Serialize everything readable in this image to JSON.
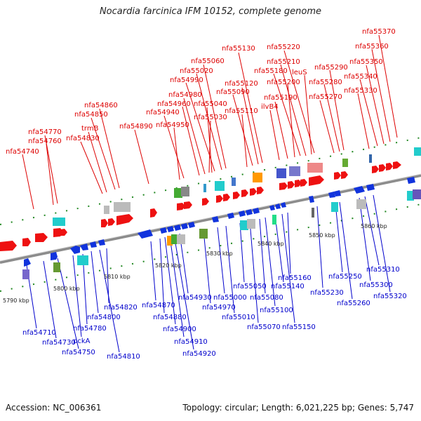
{
  "title": "Nocardia farcinica IFM 10152, complete genome",
  "footer": {
    "accession": "Accession: NC_006361",
    "summary": "Topology: circular; Length: 6,021,225 bp; Genes: 5,747"
  },
  "colors": {
    "forward_label": "#dd0000",
    "reverse_label": "#0000cc",
    "forward_gene": "#ee1111",
    "reverse_gene": "#1133dd",
    "axis": "#888888",
    "tick": "#228822"
  },
  "kbp_ticks": [
    "5790 kbp",
    "5800 kbp",
    "5810 kbp",
    "5820 kbp",
    "5830 kbp",
    "5840 kbp",
    "5850 kbp",
    "5860 kbp"
  ],
  "forward_labels": [
    "nfa55370",
    "nfa55360",
    "nfa55350",
    "nfa55340",
    "nfa55330",
    "nfa55290",
    "nfa55280",
    "nfa55270",
    "nfa55220",
    "nfa55210",
    "nfa55180",
    "leuS",
    "nfa55200",
    "nfa55190",
    "ilvB4",
    "nfa55130",
    "nfa55120",
    "nfa55090",
    "nfa55110",
    "nfa55060",
    "nfa55020",
    "nfa54990",
    "nfa54980",
    "nfa54960",
    "nfa55040",
    "nfa55030",
    "nfa54940",
    "nfa54950",
    "nfa54890",
    "nfa54860",
    "nfa54850",
    "trmB",
    "nfa54830",
    "nfa54770",
    "nfa54760",
    "nfa54740"
  ],
  "reverse_labels": [
    "nfa54710",
    "nfa54730",
    "nfa54750",
    "pckA",
    "nfa54780",
    "nfa54800",
    "nfa54810",
    "nfa54820",
    "nfa54870",
    "nfa54880",
    "nfa54900",
    "nfa54910",
    "nfa54920",
    "nfa54930",
    "nfa54970",
    "nfa55000",
    "nfa55010",
    "nfa55050",
    "nfa55070",
    "nfa55080",
    "nfa55100",
    "nfa55140",
    "nfa55150",
    "nfa55160",
    "nfa55230",
    "nfa55250",
    "nfa55260",
    "nfa55300",
    "nfa55310",
    "nfa55320"
  ]
}
